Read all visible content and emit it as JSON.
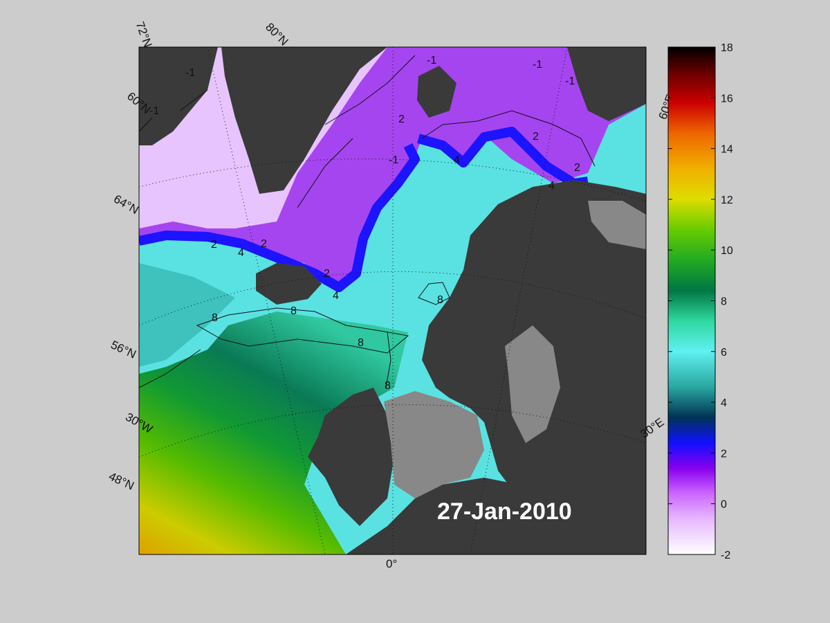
{
  "map": {
    "date_label": "27-Jan-2010",
    "lat_labels": [
      "72°N",
      "60°N",
      "64°N",
      "56°N",
      "48°N"
    ],
    "lon_labels": [
      "80°N",
      "60°E",
      "30°E",
      "30°W",
      "0°"
    ],
    "contour_labels": [
      "-1",
      "-1",
      "-1",
      "-1",
      "-1",
      "2",
      "2",
      "2",
      "2",
      "-1",
      "4",
      "4",
      "2",
      "4",
      "2",
      "4",
      "8",
      "8",
      "8",
      "8",
      "8"
    ]
  },
  "colorbar": {
    "ticks": [
      "18",
      "16",
      "14",
      "12",
      "10",
      "8",
      "6",
      "4",
      "2",
      "0",
      "-2"
    ],
    "min": -2,
    "max": 18,
    "stops": [
      "#ffffff",
      "#cc66ff",
      "#8800ee",
      "#1010ff",
      "#003355",
      "#2aa7a0",
      "#5ff0f0",
      "#30d8a0",
      "#007744",
      "#22aa22",
      "#66cc00",
      "#dddd00",
      "#f0b000",
      "#ee6600",
      "#cc0000",
      "#660000",
      "#000000"
    ]
  }
}
